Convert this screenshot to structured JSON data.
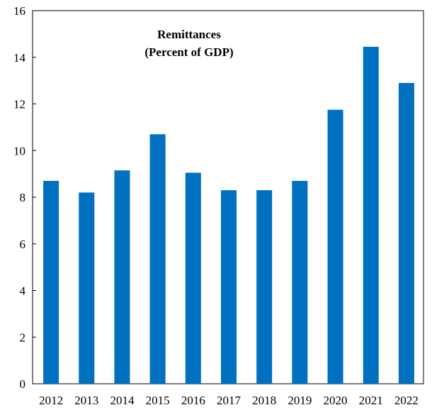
{
  "chart_data": {
    "type": "bar",
    "title": "Remittances",
    "subtitle": "(Percent of GDP)",
    "xlabel": "",
    "ylabel": "",
    "categories": [
      "2012",
      "2013",
      "2014",
      "2015",
      "2016",
      "2017",
      "2018",
      "2019",
      "2020",
      "2021",
      "2022"
    ],
    "values": [
      8.7,
      8.2,
      9.15,
      10.7,
      9.05,
      8.3,
      8.3,
      8.7,
      11.75,
      14.45,
      12.9
    ],
    "ylim": [
      0,
      16
    ],
    "yticks": [
      "0",
      "2",
      "4",
      "6",
      "8",
      "10",
      "12",
      "14",
      "16"
    ],
    "grid": false,
    "legend": "none",
    "bar_color": "#0070C0"
  }
}
